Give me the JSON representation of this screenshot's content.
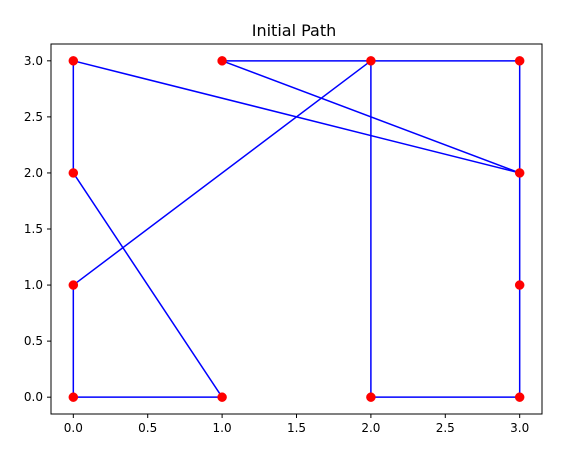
{
  "chart_data": {
    "type": "line",
    "title": "Initial Path",
    "xlabel": "",
    "ylabel": "",
    "xlim": [
      -0.15,
      3.15
    ],
    "ylim": [
      -0.15,
      3.15
    ],
    "xticks": [
      0.0,
      0.5,
      1.0,
      1.5,
      2.0,
      2.5,
      3.0
    ],
    "yticks": [
      0.0,
      0.5,
      1.0,
      1.5,
      2.0,
      2.5,
      3.0
    ],
    "xtick_labels": [
      "0.0",
      "0.5",
      "1.0",
      "1.5",
      "2.0",
      "2.5",
      "3.0"
    ],
    "ytick_labels": [
      "0.0",
      "0.5",
      "1.0",
      "1.5",
      "2.0",
      "2.5",
      "3.0"
    ],
    "grid": false,
    "line_color": "#0000ff",
    "marker_color": "#ff0000",
    "path": [
      [
        1,
        3
      ],
      [
        3,
        2
      ],
      [
        0,
        3
      ],
      [
        0,
        2
      ],
      [
        1,
        0
      ],
      [
        0,
        0
      ],
      [
        0,
        1
      ],
      [
        2,
        3
      ],
      [
        3,
        3
      ],
      [
        3,
        2
      ],
      [
        3,
        1
      ],
      [
        3,
        0
      ],
      [
        2,
        0
      ],
      [
        2,
        3
      ],
      [
        1,
        3
      ]
    ],
    "points": [
      [
        0,
        0
      ],
      [
        1,
        0
      ],
      [
        2,
        0
      ],
      [
        3,
        0
      ],
      [
        0,
        1
      ],
      [
        3,
        1
      ],
      [
        0,
        2
      ],
      [
        3,
        2
      ],
      [
        0,
        3
      ],
      [
        1,
        3
      ],
      [
        2,
        3
      ],
      [
        3,
        3
      ]
    ]
  }
}
